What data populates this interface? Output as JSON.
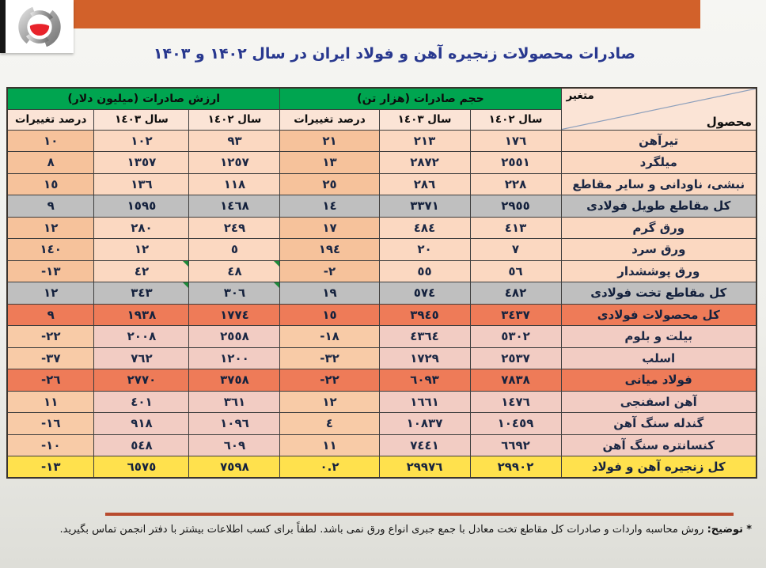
{
  "banner": {
    "color": "#d2612a"
  },
  "logo": {
    "name": "iran-steel-association-logo",
    "gray": "#9a9a9a",
    "red": "#e8232b"
  },
  "title": {
    "text": "صادرات محصولات زنجیره آهن و فولاد ایران در سال ۱۴۰۲ و ۱۴۰۳",
    "color": "#28388f"
  },
  "table": {
    "corner_top": "متغیر",
    "corner_bottom": "محصول",
    "volume_group_label": "حجم صادرات (هزار تن)",
    "value_group_label": "ارزش صادرات (میلیون دلار)",
    "col_year_1402": "سال ١٤٠٢",
    "col_year_1403": "سال ١٤٠٣",
    "col_pct": "درصد تغییرات",
    "colors": {
      "header_green": "#00a550",
      "row_peach": "#fbd8c1",
      "row_peach_pct": "#f6c29b",
      "row_rose": "#f2ccc3",
      "row_rose_pct": "#f8cba7",
      "row_gray": "#bfbfbf",
      "row_orange": "#ee7b58",
      "row_yellow": "#ffe14d"
    },
    "rows": [
      {
        "product": "تیرآهن",
        "vol_1402": "١٧٦",
        "vol_1403": "٢١٣",
        "vol_pct": "٢١",
        "val_1402": "٩٣",
        "val_1403": "١٠٢",
        "val_pct": "١٠",
        "type": "a",
        "markers": false
      },
      {
        "product": "میلگرد",
        "vol_1402": "٢٥٥١",
        "vol_1403": "٢٨٧٢",
        "vol_pct": "١٣",
        "val_1402": "١٢٥٧",
        "val_1403": "١٣٥٧",
        "val_pct": "٨",
        "type": "a",
        "markers": false
      },
      {
        "product": "نبشی، ناودانی و سایر مقاطع",
        "vol_1402": "٢٢٨",
        "vol_1403": "٢٨٦",
        "vol_pct": "٢٥",
        "val_1402": "١١٨",
        "val_1403": "١٣٦",
        "val_pct": "١٥",
        "type": "a",
        "markers": false
      },
      {
        "product": "کل مقاطع طویل فولادی",
        "vol_1402": "٢٩٥٥",
        "vol_1403": "٣٣٧١",
        "vol_pct": "١٤",
        "val_1402": "١٤٦٨",
        "val_1403": "١٥٩٥",
        "val_pct": "٩",
        "type": "gray",
        "markers": false
      },
      {
        "product": "ورق گرم",
        "vol_1402": "٤١٣",
        "vol_1403": "٤٨٤",
        "vol_pct": "١٧",
        "val_1402": "٢٤٩",
        "val_1403": "٢٨٠",
        "val_pct": "١٢",
        "type": "a",
        "markers": false
      },
      {
        "product": "ورق سرد",
        "vol_1402": "٧",
        "vol_1403": "٢٠",
        "vol_pct": "١٩٤",
        "val_1402": "٥",
        "val_1403": "١٢",
        "val_pct": "١٤٠",
        "type": "a",
        "markers": false
      },
      {
        "product": "ورق پوششدار",
        "vol_1402": "٥٦",
        "vol_1403": "٥٥",
        "vol_pct": "-٢",
        "val_1402": "٤٨",
        "val_1403": "٤٢",
        "val_pct": "-١٣",
        "type": "a",
        "markers": true
      },
      {
        "product": "کل مقاطع تخت فولادی",
        "vol_1402": "٤٨٢",
        "vol_1403": "٥٧٤",
        "vol_pct": "١٩",
        "val_1402": "٣٠٦",
        "val_1403": "٣٤٣",
        "val_pct": "١٢",
        "type": "gray",
        "markers": true
      },
      {
        "product": "کل محصولات فولادی",
        "vol_1402": "٣٤٣٧",
        "vol_1403": "٣٩٤٥",
        "vol_pct": "١٥",
        "val_1402": "١٧٧٤",
        "val_1403": "١٩٣٨",
        "val_pct": "٩",
        "type": "orange",
        "markers": false
      },
      {
        "product": "بیلت و بلوم",
        "vol_1402": "٥٣٠٢",
        "vol_1403": "٤٣٦٤",
        "vol_pct": "-١٨",
        "val_1402": "٢٥٥٨",
        "val_1403": "٢٠٠٨",
        "val_pct": "-٢٢",
        "type": "b",
        "markers": false
      },
      {
        "product": "اسلب",
        "vol_1402": "٢٥٣٧",
        "vol_1403": "١٧٢٩",
        "vol_pct": "-٣٢",
        "val_1402": "١٢٠٠",
        "val_1403": "٧٦٢",
        "val_pct": "-٣٧",
        "type": "b",
        "markers": false
      },
      {
        "product": "فولاد میانی",
        "vol_1402": "٧٨٣٨",
        "vol_1403": "٦٠٩٣",
        "vol_pct": "-٢٢",
        "val_1402": "٣٧٥٨",
        "val_1403": "٢٧٧٠",
        "val_pct": "-٢٦",
        "type": "orange",
        "markers": false
      },
      {
        "product": "آهن اسفنجی",
        "vol_1402": "١٤٧٦",
        "vol_1403": "١٦٦١",
        "vol_pct": "١٢",
        "val_1402": "٣٦١",
        "val_1403": "٤٠١",
        "val_pct": "١١",
        "type": "b",
        "markers": false
      },
      {
        "product": "گندله سنگ آهن",
        "vol_1402": "١٠٤٥٩",
        "vol_1403": "١٠٨٣٧",
        "vol_pct": "٤",
        "val_1402": "١٠٩٦",
        "val_1403": "٩١٨",
        "val_pct": "-١٦",
        "type": "b",
        "markers": false
      },
      {
        "product": "کنسانتره سنگ آهن",
        "vol_1402": "٦٦٩٢",
        "vol_1403": "٧٤٤١",
        "vol_pct": "١١",
        "val_1402": "٦٠٩",
        "val_1403": "٥٤٨",
        "val_pct": "-١٠",
        "type": "b",
        "markers": false
      },
      {
        "product": "کل زنجیره آهن و فولاد",
        "vol_1402": "٢٩٩٠٢",
        "vol_1403": "٢٩٩٧٦",
        "vol_pct": "٠.٢",
        "val_1402": "٧٥٩٨",
        "val_1403": "٦٥٧٥",
        "val_pct": "-١٣",
        "type": "yellow",
        "markers": false
      }
    ]
  },
  "chart_data": {
    "type": "table",
    "title": "صادرات محصولات زنجیره آهن و فولاد ایران در سال ۱۴۰۲ و ۱۴۰۳",
    "columns": [
      "محصول",
      "حجم صادرات ۱۴۰۲ (هزار تن)",
      "حجم صادرات ۱۴۰۳ (هزار تن)",
      "درصد تغییرات حجم",
      "ارزش صادرات ۱۴۰۲ (میلیون دلار)",
      "ارزش صادرات ۱۴۰۳ (میلیون دلار)",
      "درصد تغییرات ارزش"
    ],
    "rows": [
      [
        "تیرآهن",
        176,
        213,
        21,
        93,
        102,
        10
      ],
      [
        "میلگرد",
        2551,
        2872,
        13,
        1257,
        1357,
        8
      ],
      [
        "نبشی، ناودانی و سایر مقاطع",
        228,
        286,
        25,
        118,
        136,
        15
      ],
      [
        "کل مقاطع طویل فولادی",
        2955,
        3371,
        14,
        1468,
        1595,
        9
      ],
      [
        "ورق گرم",
        413,
        484,
        17,
        249,
        280,
        12
      ],
      [
        "ورق سرد",
        7,
        20,
        194,
        5,
        12,
        140
      ],
      [
        "ورق پوششدار",
        56,
        55,
        -2,
        48,
        42,
        -13
      ],
      [
        "کل مقاطع تخت فولادی",
        482,
        574,
        19,
        306,
        343,
        12
      ],
      [
        "کل محصولات فولادی",
        3437,
        3945,
        15,
        1774,
        1938,
        9
      ],
      [
        "بیلت و بلوم",
        5302,
        4364,
        -18,
        2558,
        2008,
        -22
      ],
      [
        "اسلب",
        2537,
        1729,
        -32,
        1200,
        762,
        -37
      ],
      [
        "فولاد میانی",
        7838,
        6093,
        -22,
        3758,
        2770,
        -26
      ],
      [
        "آهن اسفنجی",
        1476,
        1661,
        12,
        361,
        401,
        11
      ],
      [
        "گندله سنگ آهن",
        10459,
        10837,
        4,
        1096,
        918,
        -16
      ],
      [
        "کنسانتره سنگ آهن",
        6692,
        7441,
        11,
        609,
        548,
        -10
      ],
      [
        "کل زنجیره آهن و فولاد",
        29902,
        29976,
        0.2,
        7598,
        6575,
        -13
      ]
    ]
  },
  "footnote": {
    "star": "*",
    "label": "توضیح:",
    "text": "روش محاسبه واردات و صادرات کل مقاطع تخت معادل با جمع جبری انواع ورق نمی باشد. لطفاً برای کسب اطلاعات بیشتر با دفتر انجمن تماس بگیرید."
  }
}
